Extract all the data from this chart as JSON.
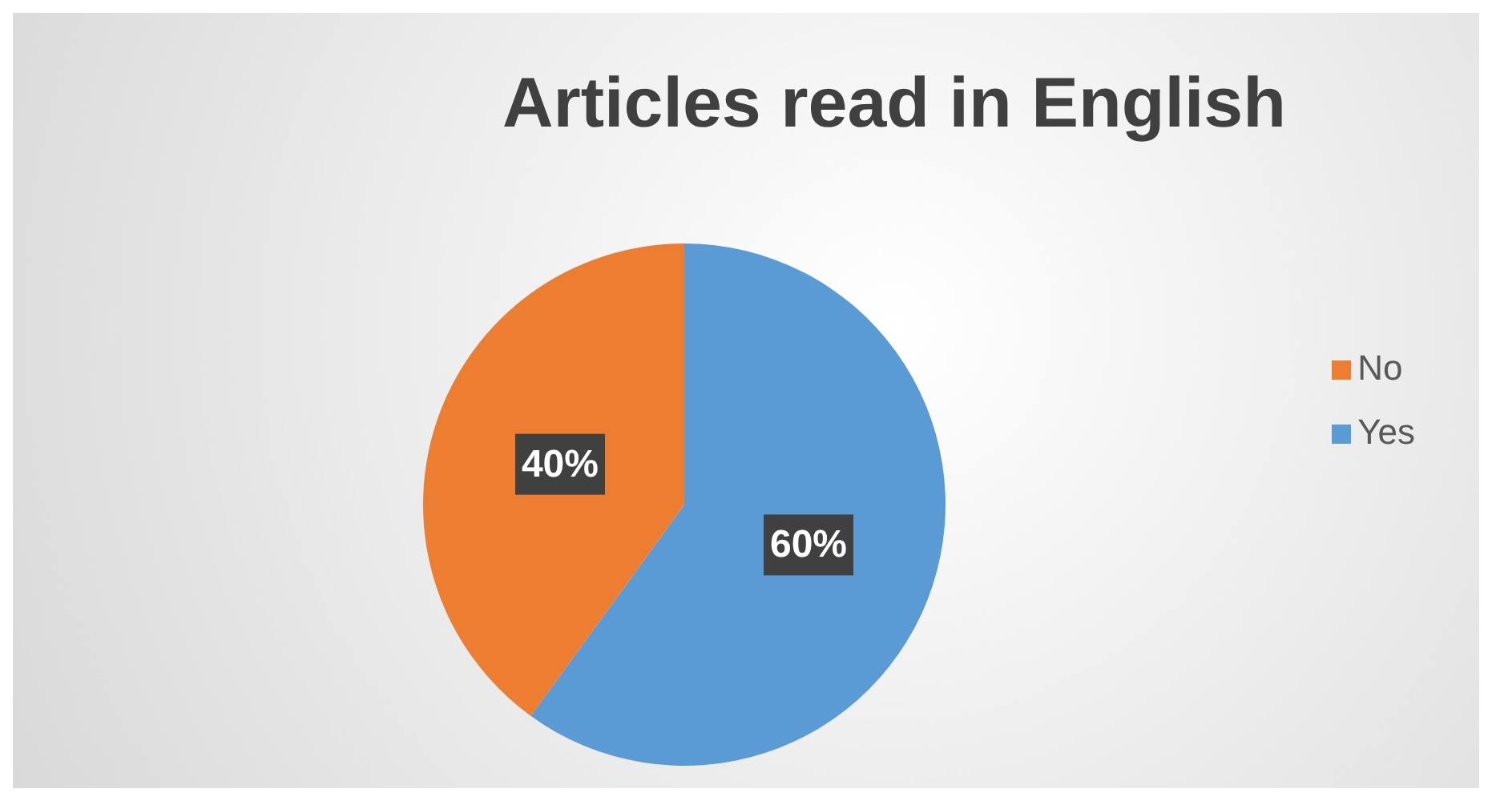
{
  "chart_data": {
    "type": "pie",
    "title": "Articles read in English",
    "categories": [
      "Yes",
      "No"
    ],
    "values": [
      60,
      40
    ],
    "colors": [
      "#5b9bd5",
      "#ed7d31"
    ],
    "value_labels": [
      "60%",
      "40%"
    ],
    "legend": "right"
  }
}
